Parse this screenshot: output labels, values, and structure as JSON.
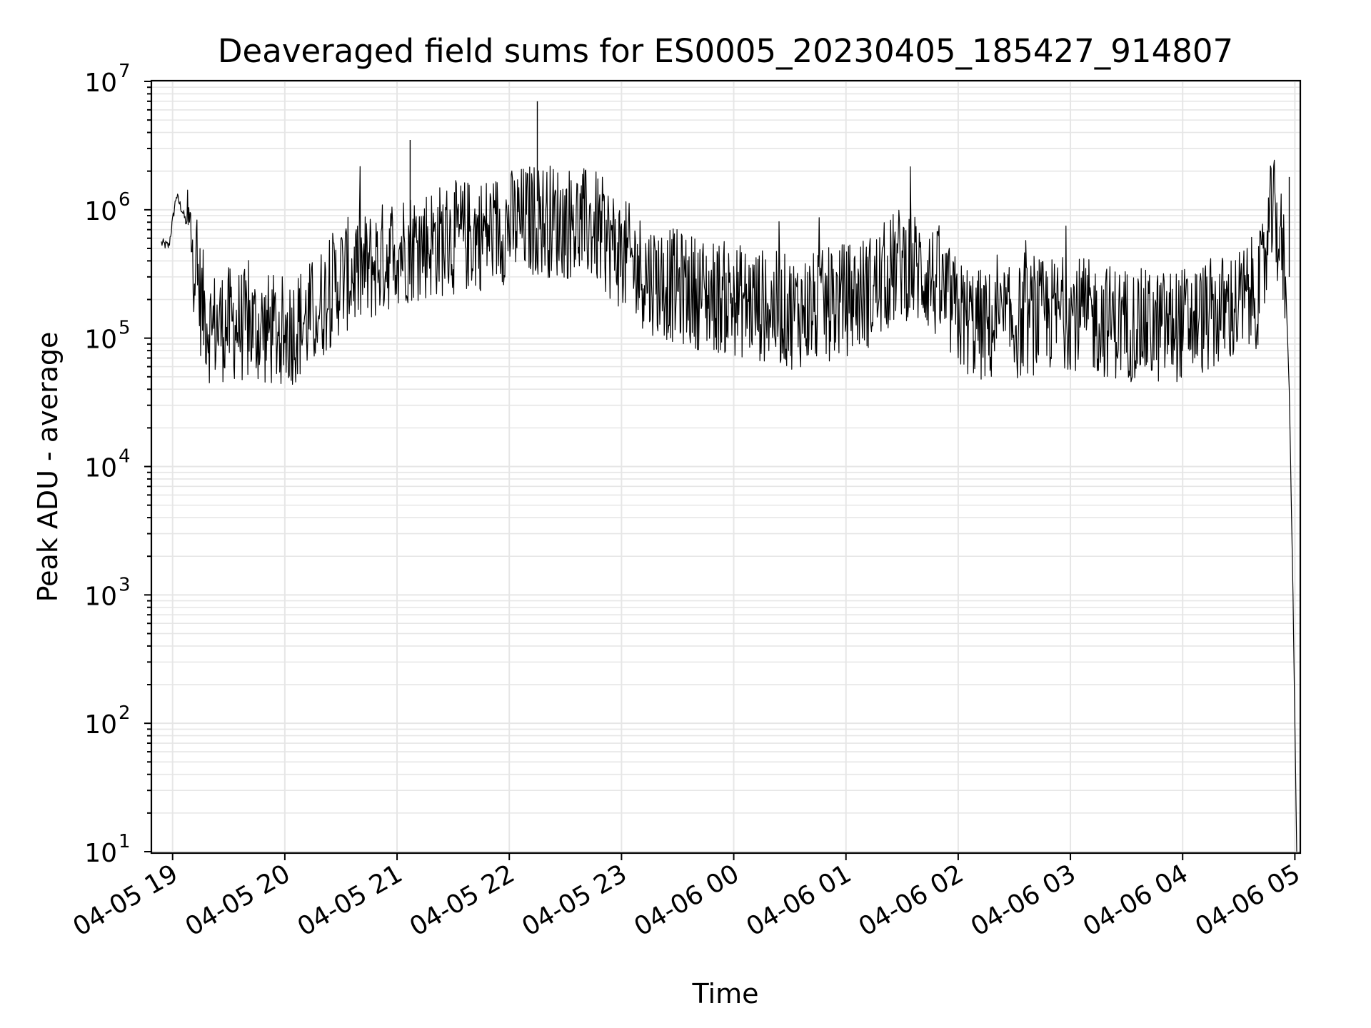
{
  "chart_data": {
    "type": "line",
    "title": "Deaveraged field sums for ES0005_20230405_185427_914807",
    "xlabel": "Time",
    "ylabel": "Peak ADU - average",
    "yscale": "log",
    "ylim": [
      10,
      10000000
    ],
    "xlim": [
      "2023-04-05 18:54",
      "2023-04-06 05:01"
    ],
    "grid": true,
    "grid_color": "#e6e6e6",
    "line_color": "#000000",
    "x_tick_labels": [
      "04-05 19",
      "04-05 20",
      "04-05 21",
      "04-05 22",
      "04-05 23",
      "04-06 00",
      "04-06 01",
      "04-06 02",
      "04-06 03",
      "04-06 04",
      "04-06 05"
    ],
    "y_tick_labels": [
      {
        "base": "10",
        "exp": "1"
      },
      {
        "base": "10",
        "exp": "2"
      },
      {
        "base": "10",
        "exp": "3"
      },
      {
        "base": "10",
        "exp": "4"
      },
      {
        "base": "10",
        "exp": "5"
      },
      {
        "base": "10",
        "exp": "6"
      },
      {
        "base": "10",
        "exp": "7"
      }
    ],
    "series": [
      {
        "noisy": true,
        "x": [
          "2023-04-05 18:54",
          "2023-04-05 18:58",
          "2023-04-05 19:02",
          "2023-04-05 19:05",
          "2023-04-05 19:10",
          "2023-04-05 19:15",
          "2023-04-05 19:20",
          "2023-04-05 19:30",
          "2023-04-05 19:45",
          "2023-04-05 20:00",
          "2023-04-05 20:15",
          "2023-04-05 20:30",
          "2023-04-05 20:45",
          "2023-04-05 21:00",
          "2023-04-05 21:15",
          "2023-04-05 21:30",
          "2023-04-05 21:45",
          "2023-04-05 22:00",
          "2023-04-05 22:15",
          "2023-04-05 22:30",
          "2023-04-05 22:45",
          "2023-04-05 23:00",
          "2023-04-05 23:15",
          "2023-04-05 23:30",
          "2023-04-05 23:45",
          "2023-04-06 00:00",
          "2023-04-06 00:15",
          "2023-04-06 00:30",
          "2023-04-06 00:45",
          "2023-04-06 01:00",
          "2023-04-06 01:15",
          "2023-04-06 01:30",
          "2023-04-06 01:45",
          "2023-04-06 02:00",
          "2023-04-06 02:15",
          "2023-04-06 02:30",
          "2023-04-06 02:45",
          "2023-04-06 03:00",
          "2023-04-06 03:15",
          "2023-04-06 03:30",
          "2023-04-06 03:45",
          "2023-04-06 04:00",
          "2023-04-06 04:15",
          "2023-04-06 04:30",
          "2023-04-06 04:42",
          "2023-04-06 04:48",
          "2023-04-06 04:52",
          "2023-04-06 04:55",
          "2023-04-06 04:57",
          "2023-04-06 04:59",
          "2023-04-06 05:00",
          "2023-04-06 05:01"
        ],
        "y": [
          550000,
          520000,
          1300000,
          1000000,
          600000,
          200000,
          120000,
          130000,
          120000,
          110000,
          150000,
          300000,
          350000,
          500000,
          550000,
          600000,
          650000,
          750000,
          850000,
          800000,
          750000,
          450000,
          300000,
          250000,
          220000,
          200000,
          180000,
          160000,
          170000,
          200000,
          240000,
          400000,
          300000,
          150000,
          120000,
          130000,
          150000,
          160000,
          140000,
          130000,
          120000,
          130000,
          150000,
          180000,
          250000,
          1000000,
          600000,
          300000,
          40000,
          1000,
          100,
          10
        ]
      }
    ],
    "annotations": [
      {
        "x": "2023-04-05 21:07",
        "y": 3500000
      },
      {
        "x": "2023-04-05 22:15",
        "y": 7000000
      },
      {
        "x": "2023-04-06 04:57",
        "y": 1800000
      }
    ]
  }
}
